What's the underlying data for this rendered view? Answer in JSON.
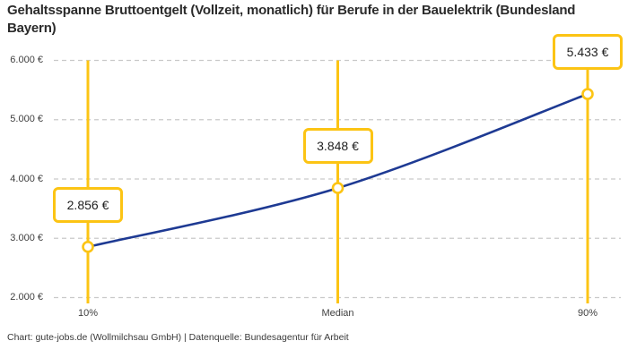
{
  "title": "Gehaltsspanne Bruttoentgelt (Vollzeit, monatlich) für Berufe in der Bauelektrik (Bundesland Bayern)",
  "footer": "Chart: gute-jobs.de (Wollmilchsau GmbH) | Datenquelle: Bundesagentur für Arbeit",
  "chart_data": {
    "type": "line",
    "title": "Gehaltsspanne Bruttoentgelt (Vollzeit, monatlich) für Berufe in der Bauelektrik (Bundesland Bayern)",
    "categories": [
      "10%",
      "Median",
      "90%"
    ],
    "values": [
      2856,
      3848,
      5433
    ],
    "value_labels": [
      "2.856 €",
      "3.848 €",
      "5.433 €"
    ],
    "y_ticks": [
      2000,
      3000,
      4000,
      5000,
      6000
    ],
    "y_tick_labels": [
      "2.000 €",
      "3.000 €",
      "4.000 €",
      "5.000 €",
      "6.000 €"
    ],
    "ylim": [
      2000,
      6000
    ],
    "grid": "horizontal-dashed",
    "legend": "none",
    "colors": {
      "line": "#1e3a93",
      "accent": "#fcc414",
      "grid": "#c9c9c9",
      "marker_fill": "#ffffff",
      "title": "#2b2b2b",
      "axis_text": "#3f3f3f"
    },
    "annotations": "value callout boxes above each point connected by vertical accent lines spanning full plot height"
  }
}
